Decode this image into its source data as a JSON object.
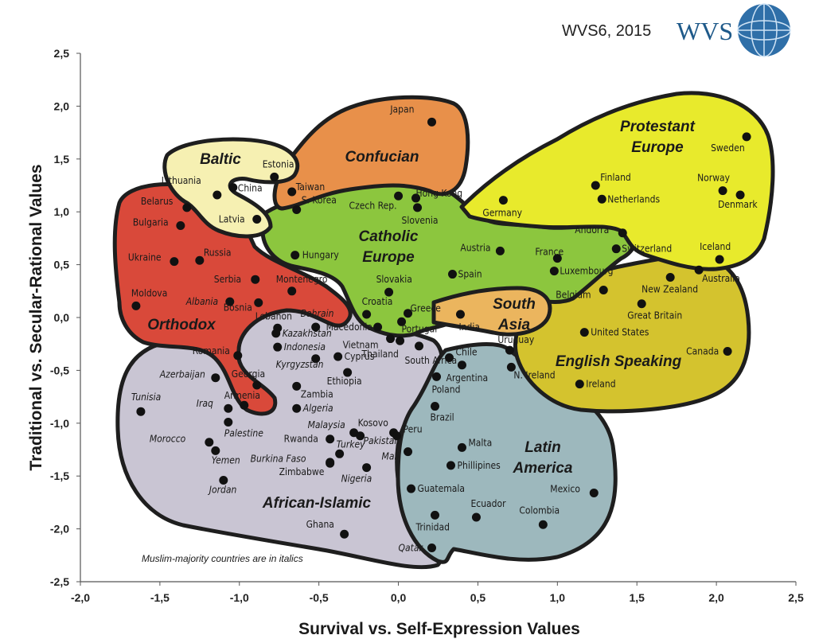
{
  "header": {
    "title": "WVS6, 2015",
    "logo_text": "WVS"
  },
  "note": "Muslim-majority countries are in italics",
  "colors": {
    "baltic": "#f6f0b2",
    "confucian": "#e8904a",
    "catholic": "#8cc63e",
    "protestant": "#e8ea2c",
    "orthodox": "#d9493a",
    "english": "#d4c32e",
    "south_asia": "#ebb55e",
    "african_islamic": "#c9c5d3",
    "latin": "#9db8bd",
    "point": "#111111",
    "outline": "#1e1e1e"
  },
  "chart_data": {
    "type": "scatter",
    "xlabel": "Survival vs. Self-Expression Values",
    "ylabel": "Traditional vs. Secular-Rational Values",
    "xlim": [
      -2.0,
      2.5
    ],
    "ylim": [
      -2.5,
      2.5
    ],
    "xticks": [
      "-2,0",
      "-1,5",
      "-1,0",
      "-0,5",
      "0,0",
      "0,5",
      "1,0",
      "1,5",
      "2,0",
      "2,5"
    ],
    "yticks": [
      "2,5",
      "2,0",
      "1,5",
      "1,0",
      "0,5",
      "0,0",
      "-0,5",
      "-1,0",
      "-1,5",
      "-2,0",
      "-2,5"
    ],
    "grid": false,
    "regions": [
      {
        "name": "Baltic",
        "label": "Baltic"
      },
      {
        "name": "Confucian",
        "label": "Confucian"
      },
      {
        "name": "Catholic Europe",
        "label": "Catholic",
        "label2": "Europe"
      },
      {
        "name": "Protestant Europe",
        "label": "Protestant",
        "label2": "Europe"
      },
      {
        "name": "Orthodox",
        "label": "Orthodox"
      },
      {
        "name": "English Speaking",
        "label": "English Speaking"
      },
      {
        "name": "South Asia",
        "label": "South",
        "label2": "Asia"
      },
      {
        "name": "African-Islamic",
        "label": "African-Islamic"
      },
      {
        "name": "Latin America",
        "label": "Latin",
        "label2": "America"
      }
    ],
    "points": [
      {
        "name": "Japan",
        "x": 0.21,
        "y": 1.85,
        "italic": false
      },
      {
        "name": "Estonia",
        "x": -0.78,
        "y": 1.33,
        "italic": false
      },
      {
        "name": "Lithuania",
        "x": -1.14,
        "y": 1.16,
        "italic": false
      },
      {
        "name": "China",
        "x": -1.04,
        "y": 1.23,
        "italic": false
      },
      {
        "name": "Taiwan",
        "x": -0.67,
        "y": 1.19,
        "italic": false
      },
      {
        "name": "S. Korea",
        "x": -0.64,
        "y": 1.02,
        "italic": false
      },
      {
        "name": "Latvia",
        "x": -0.89,
        "y": 0.93,
        "italic": false
      },
      {
        "name": "Hong Kong",
        "x": 0.11,
        "y": 1.13,
        "italic": false
      },
      {
        "name": "Czech Rep.",
        "x": 0.0,
        "y": 1.15,
        "italic": false
      },
      {
        "name": "Slovenia",
        "x": 0.12,
        "y": 1.04,
        "italic": false
      },
      {
        "name": "Sweden",
        "x": 2.19,
        "y": 1.71,
        "italic": false
      },
      {
        "name": "Finland",
        "x": 1.24,
        "y": 1.25,
        "italic": false
      },
      {
        "name": "Netherlands",
        "x": 1.28,
        "y": 1.12,
        "italic": false
      },
      {
        "name": "Norway",
        "x": 2.04,
        "y": 1.2,
        "italic": false
      },
      {
        "name": "Denmark",
        "x": 2.15,
        "y": 1.16,
        "italic": false
      },
      {
        "name": "Germany",
        "x": 0.66,
        "y": 1.11,
        "italic": false
      },
      {
        "name": "Andorra",
        "x": 1.41,
        "y": 0.8,
        "italic": false
      },
      {
        "name": "Switzerland",
        "x": 1.37,
        "y": 0.65,
        "italic": false
      },
      {
        "name": "Iceland",
        "x": 2.02,
        "y": 0.55,
        "italic": false
      },
      {
        "name": "France",
        "x": 1.0,
        "y": 0.56,
        "italic": false
      },
      {
        "name": "Luxembourg",
        "x": 0.98,
        "y": 0.44,
        "italic": false
      },
      {
        "name": "Belgium",
        "x": 1.29,
        "y": 0.26,
        "italic": false
      },
      {
        "name": "Austria",
        "x": 0.64,
        "y": 0.63,
        "italic": false
      },
      {
        "name": "Spain",
        "x": 0.34,
        "y": 0.41,
        "italic": false
      },
      {
        "name": "Hungary",
        "x": -0.65,
        "y": 0.59,
        "italic": false
      },
      {
        "name": "Slovakia",
        "x": -0.06,
        "y": 0.24,
        "italic": false
      },
      {
        "name": "Croatia",
        "x": -0.2,
        "y": 0.03,
        "italic": false
      },
      {
        "name": "Greece",
        "x": 0.06,
        "y": 0.04,
        "italic": false
      },
      {
        "name": "Portugal",
        "x": 0.02,
        "y": -0.04,
        "italic": false
      },
      {
        "name": "Belarus",
        "x": -1.33,
        "y": 1.04,
        "italic": false
      },
      {
        "name": "Bulgaria",
        "x": -1.37,
        "y": 0.87,
        "italic": false
      },
      {
        "name": "Ukraine",
        "x": -1.41,
        "y": 0.53,
        "italic": false
      },
      {
        "name": "Russia",
        "x": -1.25,
        "y": 0.54,
        "italic": false
      },
      {
        "name": "Serbia",
        "x": -0.9,
        "y": 0.36,
        "italic": false
      },
      {
        "name": "Montenegro",
        "x": -0.67,
        "y": 0.25,
        "italic": false
      },
      {
        "name": "Moldova",
        "x": -1.65,
        "y": 0.11,
        "italic": false
      },
      {
        "name": "Albania",
        "x": -1.06,
        "y": 0.15,
        "italic": true
      },
      {
        "name": "Bosnia",
        "x": -0.88,
        "y": 0.14,
        "italic": false
      },
      {
        "name": "Romania",
        "x": -1.01,
        "y": -0.36,
        "italic": false
      },
      {
        "name": "Georgia",
        "x": -0.89,
        "y": -0.64,
        "italic": false
      },
      {
        "name": "Armenia",
        "x": -0.97,
        "y": -0.83,
        "italic": false
      },
      {
        "name": "Lebanon",
        "x": -0.76,
        "y": -0.1,
        "italic": false
      },
      {
        "name": "Bahrain",
        "x": -0.52,
        "y": -0.09,
        "italic": true
      },
      {
        "name": "Kazakhstan",
        "x": -0.77,
        "y": -0.15,
        "italic": true
      },
      {
        "name": "Indonesia",
        "x": -0.76,
        "y": -0.28,
        "italic": true
      },
      {
        "name": "Kyrgyzstan",
        "x": -0.52,
        "y": -0.39,
        "italic": true
      },
      {
        "name": "Macedonia",
        "x": -0.13,
        "y": -0.09,
        "italic": false
      },
      {
        "name": "Vietnam",
        "x": -0.05,
        "y": -0.2,
        "italic": false
      },
      {
        "name": "Thailand",
        "x": 0.01,
        "y": -0.22,
        "italic": false
      },
      {
        "name": "Cyprus",
        "x": -0.38,
        "y": -0.37,
        "italic": false
      },
      {
        "name": "South Africa",
        "x": 0.13,
        "y": -0.27,
        "italic": false
      },
      {
        "name": "Ethiopia",
        "x": -0.32,
        "y": -0.52,
        "italic": false
      },
      {
        "name": "Zambia",
        "x": -0.64,
        "y": -0.65,
        "italic": false
      },
      {
        "name": "Algeria",
        "x": -0.64,
        "y": -0.86,
        "italic": true
      },
      {
        "name": "Azerbaijan",
        "x": -1.15,
        "y": -0.57,
        "italic": true
      },
      {
        "name": "Tunisia",
        "x": -1.62,
        "y": -0.89,
        "italic": true
      },
      {
        "name": "Iraq",
        "x": -1.07,
        "y": -0.86,
        "italic": true
      },
      {
        "name": "Palestine",
        "x": -1.07,
        "y": -0.99,
        "italic": true
      },
      {
        "name": "Morocco",
        "x": -1.19,
        "y": -1.18,
        "italic": true
      },
      {
        "name": "Yemen",
        "x": -1.15,
        "y": -1.26,
        "italic": true
      },
      {
        "name": "Jordan",
        "x": -1.1,
        "y": -1.54,
        "italic": true
      },
      {
        "name": "Malaysia",
        "x": -0.28,
        "y": -1.09,
        "italic": true
      },
      {
        "name": "Kosovo",
        "x": -0.24,
        "y": -1.12,
        "italic": false
      },
      {
        "name": "Rwanda",
        "x": -0.43,
        "y": -1.15,
        "italic": false
      },
      {
        "name": "Turkey",
        "x": -0.37,
        "y": -1.29,
        "italic": true
      },
      {
        "name": "Burkina Faso",
        "x": -0.43,
        "y": -1.38,
        "italic": true
      },
      {
        "name": "Nigeria",
        "x": -0.2,
        "y": -1.42,
        "italic": true
      },
      {
        "name": "Zimbabwe",
        "x": -0.43,
        "y": -1.37,
        "italic": false
      },
      {
        "name": "Pakistan",
        "x": -0.03,
        "y": -1.09,
        "italic": true
      },
      {
        "name": "Peru",
        "x": -0.01,
        "y": -1.12,
        "italic": false
      },
      {
        "name": "Mali",
        "x": 0.06,
        "y": -1.27,
        "italic": true
      },
      {
        "name": "Ghana",
        "x": -0.34,
        "y": -2.05,
        "italic": false
      },
      {
        "name": "Qatar",
        "x": 0.21,
        "y": -2.18,
        "italic": true
      },
      {
        "name": "India",
        "x": 0.39,
        "y": 0.03,
        "italic": false
      },
      {
        "name": "Chile",
        "x": 0.32,
        "y": -0.38,
        "italic": false
      },
      {
        "name": "Argentina",
        "x": 0.4,
        "y": -0.45,
        "italic": false
      },
      {
        "name": "Poland",
        "x": 0.24,
        "y": -0.56,
        "italic": false
      },
      {
        "name": "Brazil",
        "x": 0.23,
        "y": -0.84,
        "italic": false
      },
      {
        "name": "Malta",
        "x": 0.4,
        "y": -1.23,
        "italic": false
      },
      {
        "name": "Phillipines",
        "x": 0.33,
        "y": -1.4,
        "italic": false
      },
      {
        "name": "Guatemala",
        "x": 0.08,
        "y": -1.62,
        "italic": false
      },
      {
        "name": "Trinidad",
        "x": 0.23,
        "y": -1.87,
        "italic": false
      },
      {
        "name": "Ecuador",
        "x": 0.49,
        "y": -1.89,
        "italic": false
      },
      {
        "name": "Colombia",
        "x": 0.91,
        "y": -1.96,
        "italic": false
      },
      {
        "name": "Mexico",
        "x": 1.23,
        "y": -1.66,
        "italic": false
      },
      {
        "name": "Uruguay",
        "x": 0.7,
        "y": -0.31,
        "italic": false
      },
      {
        "name": "N. Ireland",
        "x": 0.71,
        "y": -0.47,
        "italic": false
      },
      {
        "name": "Ireland",
        "x": 1.14,
        "y": -0.63,
        "italic": false
      },
      {
        "name": "United States",
        "x": 1.17,
        "y": -0.14,
        "italic": false
      },
      {
        "name": "Great Britain",
        "x": 1.53,
        "y": 0.13,
        "italic": false
      },
      {
        "name": "New Zealand",
        "x": 1.71,
        "y": 0.38,
        "italic": false
      },
      {
        "name": "Australia",
        "x": 1.89,
        "y": 0.45,
        "italic": false
      },
      {
        "name": "Canada",
        "x": 2.07,
        "y": -0.32,
        "italic": false
      }
    ]
  }
}
